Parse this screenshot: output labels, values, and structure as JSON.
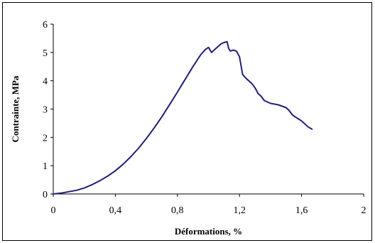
{
  "chart_data": {
    "type": "line",
    "title": "",
    "xlabel": "Déformations, %",
    "ylabel": "Contrainte, MPa",
    "xlim": [
      0,
      2
    ],
    "ylim": [
      0,
      6
    ],
    "x_ticks": [
      "0",
      "0,4",
      "0,8",
      "1,2",
      "1,6",
      "2"
    ],
    "y_ticks": [
      "0",
      "1",
      "2",
      "3",
      "4",
      "5",
      "6"
    ],
    "grid": false,
    "legend": "none",
    "series": [
      {
        "color": "#1f1f7a",
        "x": [
          0,
          0.05,
          0.1,
          0.15,
          0.2,
          0.25,
          0.3,
          0.35,
          0.4,
          0.45,
          0.5,
          0.55,
          0.6,
          0.65,
          0.7,
          0.75,
          0.8,
          0.85,
          0.9,
          0.95,
          0.98,
          1.0,
          1.02,
          1.04,
          1.06,
          1.08,
          1.1,
          1.12,
          1.13,
          1.14,
          1.16,
          1.18,
          1.2,
          1.22,
          1.24,
          1.26,
          1.28,
          1.3,
          1.32,
          1.34,
          1.36,
          1.4,
          1.45,
          1.5,
          1.52,
          1.54,
          1.56,
          1.58,
          1.6,
          1.62,
          1.64,
          1.67
        ],
        "y": [
          0,
          0.03,
          0.08,
          0.13,
          0.21,
          0.33,
          0.47,
          0.63,
          0.82,
          1.05,
          1.32,
          1.62,
          1.96,
          2.33,
          2.73,
          3.16,
          3.6,
          4.05,
          4.5,
          4.92,
          5.1,
          5.18,
          5.0,
          5.1,
          5.2,
          5.3,
          5.35,
          5.38,
          5.15,
          5.05,
          5.08,
          5.05,
          4.85,
          4.22,
          4.1,
          4.0,
          3.9,
          3.75,
          3.55,
          3.45,
          3.3,
          3.2,
          3.15,
          3.05,
          2.95,
          2.8,
          2.72,
          2.65,
          2.58,
          2.48,
          2.38,
          2.28
        ]
      }
    ]
  }
}
